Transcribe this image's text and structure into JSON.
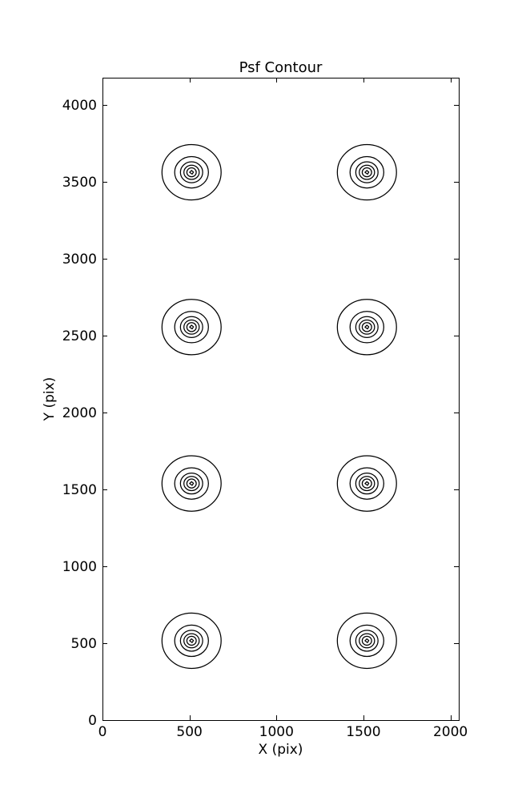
{
  "page": {
    "background": "#ffffff"
  },
  "chart_data": {
    "type": "contour",
    "title": "Psf Contour",
    "xlabel": "X (pix)",
    "ylabel": "Y (pix)",
    "xlim": [
      0,
      2048
    ],
    "ylim": [
      0,
      4176
    ],
    "xticks": [
      0,
      500,
      1000,
      1500,
      2000
    ],
    "yticks": [
      0,
      500,
      1000,
      1500,
      2000,
      2500,
      3000,
      3500,
      4000
    ],
    "grid": false,
    "legend": null,
    "tick_direction": "in",
    "line_color": "#000000",
    "background": "#ffffff",
    "psf_centers": [
      {
        "x": 512,
        "y": 516
      },
      {
        "x": 1520,
        "y": 516
      },
      {
        "x": 512,
        "y": 1538
      },
      {
        "x": 1520,
        "y": 1538
      },
      {
        "x": 512,
        "y": 2555
      },
      {
        "x": 1520,
        "y": 2555
      },
      {
        "x": 512,
        "y": 3561
      },
      {
        "x": 1520,
        "y": 3561
      }
    ],
    "contour_level_radii": [
      {
        "rx": 170,
        "ry": 180
      },
      {
        "rx": 97,
        "ry": 102
      },
      {
        "rx": 64,
        "ry": 68
      },
      {
        "rx": 44,
        "ry": 46
      },
      {
        "rx": 27,
        "ry": 29
      },
      {
        "rx": 11,
        "ry": 12
      }
    ]
  }
}
